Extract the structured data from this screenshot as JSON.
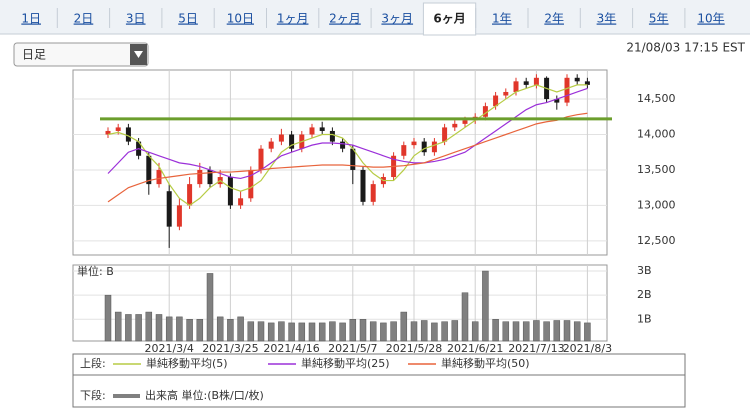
{
  "tabs": [
    "1日",
    "2日",
    "3日",
    "5日",
    "10日",
    "1ヶ月",
    "2ヶ月",
    "3ヶ月",
    "6ヶ月",
    "1年",
    "2年",
    "3年",
    "5年",
    "10年"
  ],
  "active_tab": 8,
  "selector": "日足",
  "timestamp": "21/08/03 17:15 EST",
  "chart_data": [
    {
      "type": "candlestick",
      "categories": [
        null,
        null,
        null,
        null,
        null,
        null,
        "2021/3/4",
        null,
        null,
        null,
        null,
        null,
        "2021/3/25",
        null,
        null,
        null,
        null,
        null,
        "2021/4/16",
        null,
        null,
        null,
        null,
        null,
        "2021/5/7",
        null,
        null,
        null,
        null,
        null,
        "2021/5/28",
        null,
        null,
        null,
        null,
        null,
        "2021/6/21",
        null,
        null,
        null,
        null,
        null,
        "2021/7/13",
        null,
        null,
        null,
        null,
        "2021/8/3"
      ],
      "open": [
        14000,
        14050,
        14100,
        13900,
        13700,
        13300,
        13200,
        12700,
        13000,
        13300,
        13500,
        13300,
        13400,
        13000,
        13100,
        13500,
        13800,
        13900,
        14000,
        13800,
        14000,
        14100,
        14050,
        13900,
        13800,
        13500,
        13050,
        13300,
        13400,
        13700,
        13850,
        13900,
        13750,
        13900,
        14100,
        14150,
        14200,
        14250,
        14400,
        14550,
        14600,
        14750,
        14700,
        14800,
        14500,
        14450,
        14800,
        14750
      ],
      "high": [
        14100,
        14150,
        14150,
        13950,
        13750,
        13600,
        13300,
        13100,
        13400,
        13600,
        13550,
        13500,
        13450,
        13200,
        13550,
        13850,
        13950,
        14080,
        14050,
        14050,
        14150,
        14180,
        14100,
        13950,
        13850,
        13550,
        13350,
        13450,
        13750,
        13900,
        13950,
        13950,
        13950,
        14150,
        14200,
        14250,
        14300,
        14450,
        14600,
        14650,
        14800,
        14800,
        14850,
        14820,
        14550,
        14850,
        14850,
        14800
      ],
      "low": [
        13950,
        14000,
        13850,
        13650,
        13150,
        13250,
        12400,
        12650,
        12950,
        13250,
        13250,
        13250,
        12950,
        12950,
        13050,
        13450,
        13750,
        13850,
        13750,
        13750,
        13950,
        14000,
        13850,
        13750,
        13300,
        13000,
        13000,
        13250,
        13350,
        13650,
        13800,
        13700,
        13700,
        13850,
        14050,
        14100,
        14150,
        14200,
        14350,
        14500,
        14550,
        14650,
        14650,
        14450,
        14350,
        14400,
        14700,
        14650
      ],
      "close": [
        14050,
        14100,
        13900,
        13700,
        13300,
        13500,
        12700,
        13000,
        13300,
        13500,
        13300,
        13400,
        13000,
        13100,
        13500,
        13800,
        13900,
        14000,
        13800,
        14000,
        14100,
        14050,
        13900,
        13800,
        13500,
        13050,
        13300,
        13400,
        13700,
        13850,
        13900,
        13750,
        13900,
        14100,
        14150,
        14200,
        14250,
        14400,
        14550,
        14600,
        14750,
        14700,
        14800,
        14500,
        14450,
        14800,
        14750,
        14700
      ],
      "up_color": "#e0362a",
      "down_color": "#1a1a1a",
      "ylim": [
        12300,
        14910
      ],
      "yticks": [
        {
          "value": 12500,
          "label": "12,500"
        },
        {
          "value": 13000,
          "label": "13,000"
        },
        {
          "value": 13500,
          "label": "13,500"
        },
        {
          "value": 14000,
          "label": "14,000"
        },
        {
          "value": 14500,
          "label": "14,500"
        }
      ],
      "grid": true,
      "reference_line": 14220,
      "reference_color": "#6b9e2c",
      "legend_label": "上段:",
      "series": [
        {
          "name": "単純移動平均(5)",
          "color": "#b7cc45",
          "values": [
            14000,
            14030,
            13980,
            13900,
            13700,
            13550,
            13300,
            13100,
            13000,
            13100,
            13250,
            13350,
            13250,
            13200,
            13250,
            13350,
            13550,
            13750,
            13850,
            13900,
            13950,
            14000,
            14000,
            13950,
            13800,
            13600,
            13450,
            13350,
            13350,
            13500,
            13700,
            13800,
            13850,
            13900,
            14000,
            14100,
            14200,
            14300,
            14400,
            14500,
            14600,
            14650,
            14700,
            14650,
            14600,
            14650,
            14700,
            14700
          ]
        },
        {
          "name": "単純移動平均(25)",
          "color": "#9b30d9",
          "values": [
            13450,
            13600,
            13750,
            13800,
            13750,
            13700,
            13650,
            13600,
            13580,
            13550,
            13500,
            13450,
            13400,
            13380,
            13420,
            13500,
            13600,
            13700,
            13750,
            13800,
            13850,
            13880,
            13880,
            13870,
            13850,
            13800,
            13750,
            13700,
            13650,
            13620,
            13600,
            13600,
            13620,
            13650,
            13700,
            13750,
            13850,
            13950,
            14050,
            14150,
            14250,
            14350,
            14420,
            14450,
            14500,
            14550,
            14600,
            14650
          ]
        },
        {
          "name": "単純移動平均(50)",
          "color": "#e8643c",
          "values": [
            13050,
            13150,
            13250,
            13300,
            13350,
            13380,
            13400,
            13420,
            13440,
            13450,
            13460,
            13470,
            13470,
            13480,
            13490,
            13500,
            13520,
            13530,
            13540,
            13550,
            13560,
            13570,
            13570,
            13570,
            13560,
            13550,
            13540,
            13540,
            13550,
            13560,
            13580,
            13600,
            13650,
            13700,
            13750,
            13800,
            13850,
            13900,
            13950,
            14000,
            14050,
            14100,
            14150,
            14180,
            14200,
            14250,
            14280,
            14300
          ]
        }
      ]
    },
    {
      "type": "bar",
      "unit_label": "単位: B",
      "ylim": [
        0.1,
        3.25
      ],
      "yticks": [
        {
          "value": 1,
          "label": "1B"
        },
        {
          "value": 2,
          "label": "2B"
        },
        {
          "value": 3,
          "label": "3B"
        }
      ],
      "legend_label": "下段:",
      "series": [
        {
          "name": "出来高 単位:(B株/口/枚)",
          "color": "#808080",
          "values": [
            2.0,
            1.3,
            1.2,
            1.2,
            1.3,
            1.2,
            1.1,
            1.1,
            1.0,
            1.0,
            2.9,
            1.1,
            1.0,
            1.1,
            0.9,
            0.9,
            0.85,
            0.9,
            0.85,
            0.85,
            0.85,
            0.85,
            0.9,
            0.85,
            1.0,
            1.0,
            0.9,
            0.85,
            0.9,
            1.3,
            0.9,
            0.95,
            0.85,
            0.9,
            0.95,
            2.1,
            0.9,
            3.0,
            1.0,
            0.9,
            0.9,
            0.9,
            0.95,
            0.9,
            0.95,
            0.95,
            0.9,
            0.85
          ]
        }
      ]
    }
  ]
}
